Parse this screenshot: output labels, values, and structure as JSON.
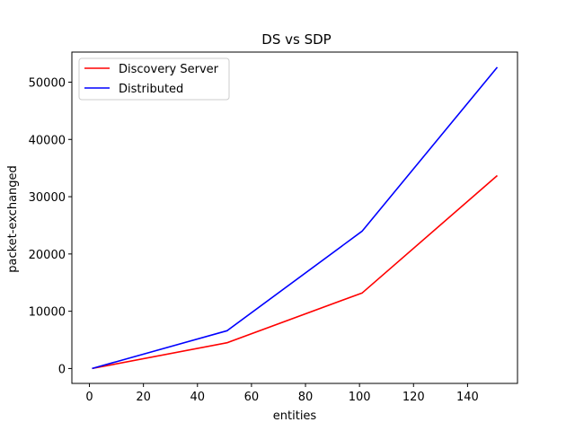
{
  "chart_data": {
    "type": "line",
    "title": "DS vs SDP",
    "xlabel": "entities",
    "ylabel": "packet-exchanged",
    "xlim": [
      -6.5,
      158.5
    ],
    "ylim": [
      -2600,
      55250
    ],
    "xticks": [
      0,
      20,
      40,
      60,
      80,
      100,
      120,
      140
    ],
    "yticks": [
      0,
      10000,
      20000,
      30000,
      40000,
      50000
    ],
    "grid": false,
    "legend_position": "top-left",
    "series": [
      {
        "name": "Discovery Server",
        "color": "#ff0000",
        "x": [
          1,
          51,
          101,
          151
        ],
        "y": [
          0,
          4500,
          13200,
          33700
        ]
      },
      {
        "name": "Distributed",
        "color": "#0000ff",
        "x": [
          1,
          51,
          101,
          151
        ],
        "y": [
          0,
          6600,
          24000,
          52600
        ]
      }
    ]
  }
}
